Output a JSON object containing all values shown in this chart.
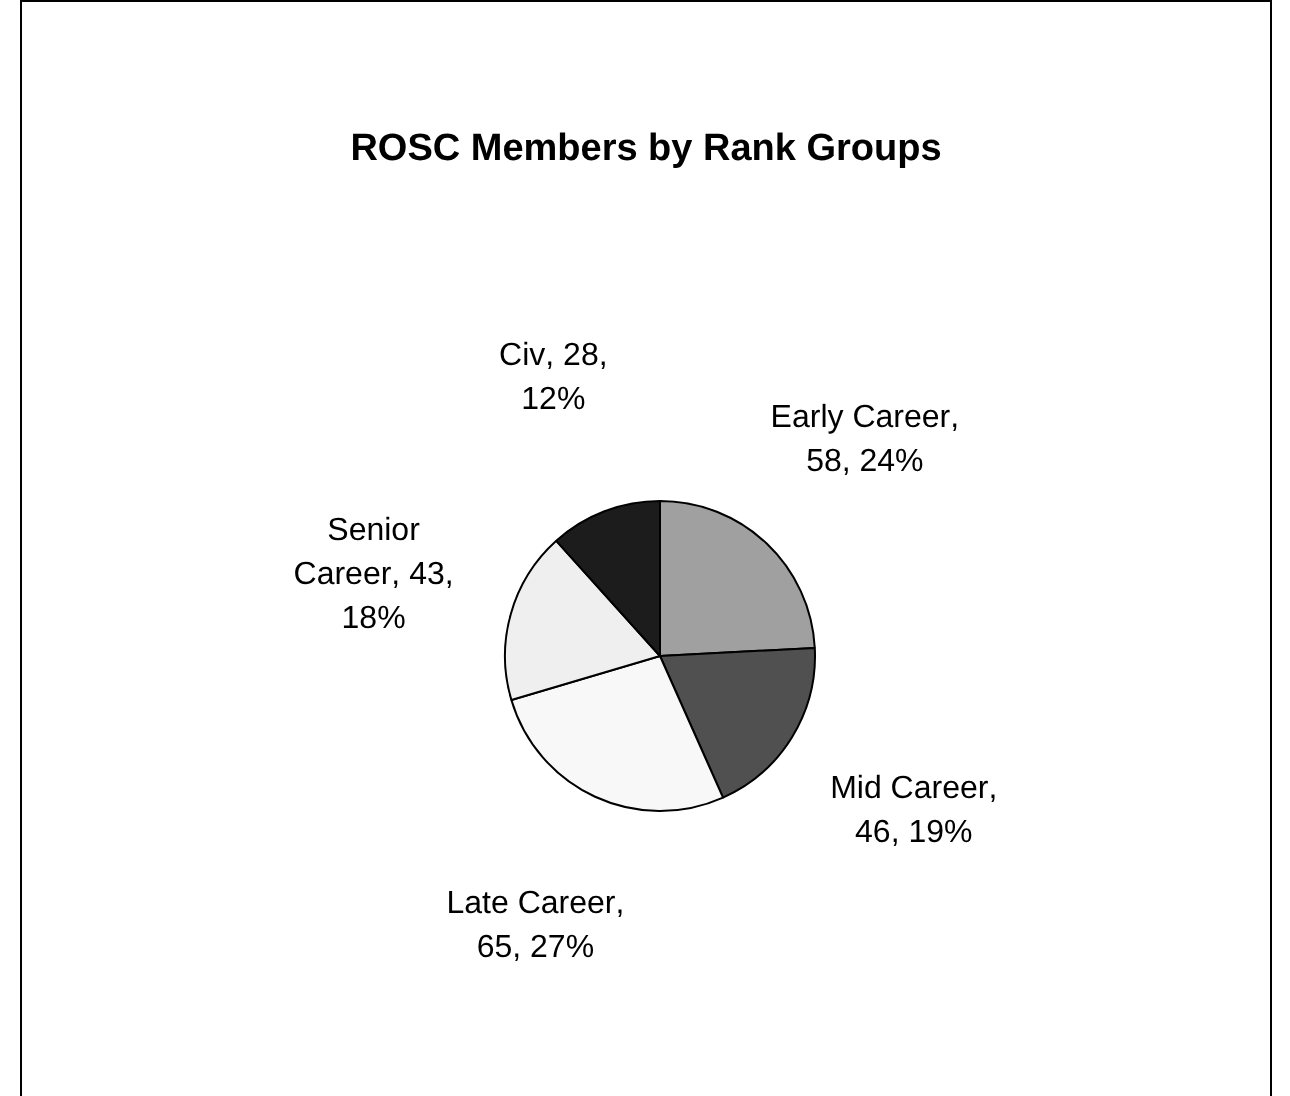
{
  "chart_data": {
    "type": "pie",
    "title": "ROSC Members by Rank Groups",
    "categories": [
      "Early Career",
      "Mid Career",
      "Late Career",
      "Senior Career",
      "Civ"
    ],
    "values": [
      58,
      46,
      65,
      43,
      28
    ],
    "value_labels": [
      ", 58, 24%",
      ", 46, 19%",
      ", 65, 27%",
      ", 43, 18%",
      ", 28, 12%"
    ],
    "colors": [
      "#a0a0a0",
      "#505050",
      "#f8f8f8",
      "#efefef",
      "#1c1c1c"
    ],
    "legend": false
  }
}
